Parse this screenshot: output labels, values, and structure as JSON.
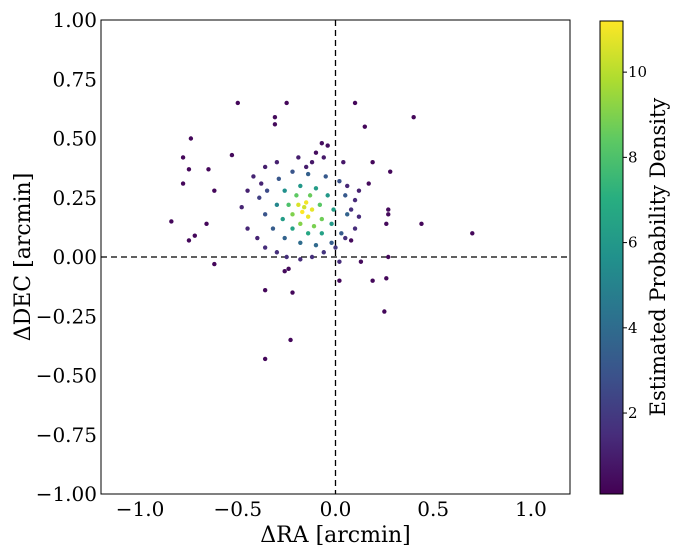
{
  "chart_data": {
    "type": "scatter",
    "xlabel": "ΔRA [arcmin]",
    "ylabel": "ΔDEC [arcmin]",
    "xlim": [
      -1.2,
      1.2
    ],
    "ylim": [
      -1.0,
      1.0
    ],
    "xticks": [
      -1.0,
      -0.5,
      0.0,
      0.5,
      1.0
    ],
    "xtick_labels": [
      "−1.0",
      "−0.5",
      "0.0",
      "0.5",
      "1.0"
    ],
    "yticks": [
      1.0,
      0.75,
      0.5,
      0.25,
      0.0,
      -0.25,
      -0.5,
      -0.75,
      -1.0
    ],
    "ytick_labels": [
      "1.00",
      "0.75",
      "0.50",
      "0.25",
      "0.00",
      "−0.25",
      "−0.50",
      "−0.75",
      "−1.00"
    ],
    "reference_lines": {
      "x": 0.0,
      "y": 0.0,
      "style": "dashed",
      "color": "#000000"
    },
    "grid": false,
    "colormap": "viridis",
    "colorbar": {
      "label": "Estimated Probability Density",
      "range": [
        0.1,
        11.2
      ],
      "ticks": [
        2,
        4,
        6,
        8,
        10
      ],
      "tick_labels": [
        "2",
        "4",
        "6",
        "8",
        "10"
      ]
    },
    "points": [
      [
        -0.5,
        0.65,
        0.3
      ],
      [
        -0.25,
        0.65,
        0.3
      ],
      [
        0.1,
        0.65,
        0.3
      ],
      [
        0.4,
        0.59,
        0.3
      ],
      [
        -0.31,
        0.59,
        0.4
      ],
      [
        -0.31,
        0.56,
        0.4
      ],
      [
        -0.74,
        0.5,
        0.3
      ],
      [
        0.15,
        0.55,
        0.3
      ],
      [
        -0.78,
        0.42,
        0.3
      ],
      [
        -0.53,
        0.43,
        0.4
      ],
      [
        -0.75,
        0.37,
        0.3
      ],
      [
        -0.65,
        0.37,
        0.3
      ],
      [
        -0.78,
        0.31,
        0.3
      ],
      [
        -0.62,
        0.28,
        0.3
      ],
      [
        0.19,
        0.4,
        0.3
      ],
      [
        0.28,
        0.36,
        0.3
      ],
      [
        0.17,
        0.31,
        0.4
      ],
      [
        -0.84,
        0.15,
        0.3
      ],
      [
        -0.66,
        0.14,
        0.3
      ],
      [
        -0.75,
        0.07,
        0.3
      ],
      [
        -0.72,
        0.09,
        0.3
      ],
      [
        -0.62,
        -0.03,
        0.3
      ],
      [
        0.44,
        0.14,
        0.3
      ],
      [
        0.7,
        0.1,
        0.3
      ],
      [
        0.27,
        0.2,
        0.4
      ],
      [
        0.27,
        0.18,
        0.4
      ],
      [
        0.26,
        0.14,
        0.4
      ],
      [
        0.27,
        0.0,
        0.3
      ],
      [
        0.19,
        -0.1,
        0.3
      ],
      [
        0.26,
        -0.09,
        0.3
      ],
      [
        0.25,
        -0.23,
        0.3
      ],
      [
        -0.36,
        -0.14,
        0.3
      ],
      [
        -0.22,
        -0.15,
        0.3
      ],
      [
        -0.36,
        -0.43,
        0.3
      ],
      [
        -0.23,
        -0.35,
        0.3
      ],
      [
        -0.26,
        -0.06,
        0.4
      ],
      [
        -0.24,
        -0.05,
        0.4
      ],
      [
        0.02,
        -0.1,
        0.3
      ],
      [
        0.13,
        -0.02,
        0.4
      ],
      [
        0.08,
        0.07,
        0.4
      ],
      [
        -0.07,
        0.48,
        0.5
      ],
      [
        -0.04,
        0.47,
        0.5
      ],
      [
        -0.1,
        0.44,
        0.5
      ],
      [
        -0.12,
        0.4,
        0.8
      ],
      [
        -0.15,
        0.38,
        1.0
      ],
      [
        -0.06,
        0.42,
        0.9
      ],
      [
        0.04,
        0.4,
        0.8
      ],
      [
        -0.36,
        0.38,
        1.0
      ],
      [
        -0.3,
        0.4,
        1.1
      ],
      [
        -0.19,
        0.42,
        1.0
      ],
      [
        -0.42,
        0.34,
        1.2
      ],
      [
        -0.38,
        0.31,
        1.2
      ],
      [
        0.06,
        0.3,
        1.3
      ],
      [
        0.12,
        0.28,
        1.1
      ],
      [
        -0.45,
        0.28,
        1.1
      ],
      [
        -0.48,
        0.21,
        1.2
      ],
      [
        0.1,
        0.24,
        1.4
      ],
      [
        0.08,
        0.2,
        1.6
      ],
      [
        0.12,
        0.17,
        1.4
      ],
      [
        0.1,
        0.12,
        1.5
      ],
      [
        0.05,
        0.08,
        1.6
      ],
      [
        -0.45,
        0.12,
        1.3
      ],
      [
        -0.4,
        0.08,
        1.2
      ],
      [
        -0.36,
        0.04,
        1.5
      ],
      [
        -0.3,
        0.02,
        1.6
      ],
      [
        -0.25,
        0.0,
        1.6
      ],
      [
        -0.18,
        -0.01,
        1.5
      ],
      [
        -0.12,
        0.0,
        1.6
      ],
      [
        -0.06,
        0.02,
        1.8
      ],
      [
        0.0,
        0.04,
        1.9
      ],
      [
        0.02,
        -0.02,
        1.5
      ],
      [
        -0.39,
        0.25,
        2.2
      ],
      [
        -0.35,
        0.28,
        2.6
      ],
      [
        -0.29,
        0.33,
        3.1
      ],
      [
        -0.22,
        0.36,
        3.0
      ],
      [
        -0.14,
        0.35,
        3.5
      ],
      [
        -0.05,
        0.34,
        3.2
      ],
      [
        0.02,
        0.32,
        2.9
      ],
      [
        0.05,
        0.26,
        3.2
      ],
      [
        0.06,
        0.18,
        3.6
      ],
      [
        0.03,
        0.1,
        3.3
      ],
      [
        -0.02,
        0.06,
        3.4
      ],
      [
        -0.1,
        0.05,
        3.9
      ],
      [
        -0.18,
        0.06,
        4.0
      ],
      [
        -0.26,
        0.08,
        3.6
      ],
      [
        -0.32,
        0.12,
        3.3
      ],
      [
        -0.36,
        0.18,
        3.0
      ],
      [
        -0.3,
        0.22,
        5.2
      ],
      [
        -0.26,
        0.28,
        5.6
      ],
      [
        -0.18,
        0.3,
        6.0
      ],
      [
        -0.1,
        0.29,
        6.2
      ],
      [
        -0.04,
        0.26,
        6.0
      ],
      [
        -0.01,
        0.2,
        6.3
      ],
      [
        -0.02,
        0.14,
        6.1
      ],
      [
        -0.07,
        0.1,
        6.4
      ],
      [
        -0.14,
        0.1,
        6.7
      ],
      [
        -0.22,
        0.12,
        6.5
      ],
      [
        -0.27,
        0.16,
        6.2
      ],
      [
        -0.24,
        0.22,
        8.0
      ],
      [
        -0.2,
        0.26,
        8.4
      ],
      [
        -0.13,
        0.26,
        8.6
      ],
      [
        -0.08,
        0.22,
        8.3
      ],
      [
        -0.07,
        0.16,
        8.7
      ],
      [
        -0.11,
        0.13,
        8.9
      ],
      [
        -0.18,
        0.14,
        9.1
      ],
      [
        -0.22,
        0.18,
        9.0
      ],
      [
        -0.19,
        0.22,
        10.6
      ],
      [
        -0.15,
        0.23,
        11.0
      ],
      [
        -0.12,
        0.2,
        10.8
      ],
      [
        -0.14,
        0.17,
        10.9
      ],
      [
        -0.17,
        0.19,
        11.2
      ],
      [
        -0.16,
        0.21,
        10.4
      ]
    ]
  }
}
